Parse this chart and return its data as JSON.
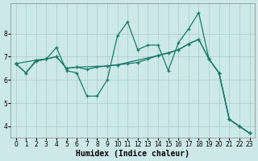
{
  "xlabel": "Humidex (Indice chaleur)",
  "bg_color": "#cce8e8",
  "grid_color": "#b0d0d0",
  "line_color": "#1a7a6a",
  "xlim": [
    -0.5,
    23.5
  ],
  "ylim": [
    3.5,
    9.3
  ],
  "xticks": [
    0,
    1,
    2,
    3,
    4,
    5,
    6,
    7,
    8,
    9,
    10,
    11,
    12,
    13,
    14,
    15,
    16,
    17,
    18,
    19,
    20,
    21,
    22,
    23
  ],
  "yticks": [
    4,
    5,
    6,
    7,
    8
  ],
  "line1_x": [
    0,
    1,
    2,
    3,
    4,
    5,
    6,
    7,
    8,
    9,
    10,
    11,
    12,
    13,
    14,
    15,
    16,
    17,
    18,
    19,
    20,
    21,
    22,
    23
  ],
  "line1_y": [
    6.7,
    6.3,
    6.8,
    6.9,
    7.4,
    6.4,
    6.3,
    5.3,
    5.3,
    6.0,
    7.9,
    8.5,
    7.3,
    7.5,
    7.5,
    6.4,
    7.6,
    8.2,
    8.9,
    6.9,
    6.3,
    4.3,
    4.0,
    3.7
  ],
  "line2_x": [
    0,
    1,
    2,
    3,
    4,
    5,
    6,
    7,
    8,
    9,
    10,
    11,
    12,
    13,
    14,
    15,
    16,
    17,
    18,
    19,
    20,
    21,
    22,
    23
  ],
  "line2_y": [
    6.7,
    6.3,
    6.85,
    6.9,
    7.0,
    6.5,
    6.55,
    6.45,
    6.55,
    6.6,
    6.65,
    6.7,
    6.75,
    6.9,
    7.05,
    7.15,
    7.3,
    7.55,
    7.75,
    6.9,
    6.3,
    4.3,
    4.0,
    3.7
  ],
  "line3_x": [
    0,
    2,
    3,
    4,
    5,
    6,
    9,
    10,
    14,
    16,
    17,
    18,
    19,
    20,
    21,
    22,
    23
  ],
  "line3_y": [
    6.7,
    6.85,
    6.9,
    7.0,
    6.5,
    6.55,
    6.6,
    6.65,
    7.05,
    7.3,
    7.55,
    7.75,
    6.9,
    6.3,
    4.3,
    4.0,
    3.7
  ],
  "xlabel_fontsize": 7,
  "tick_fontsize": 5.5
}
